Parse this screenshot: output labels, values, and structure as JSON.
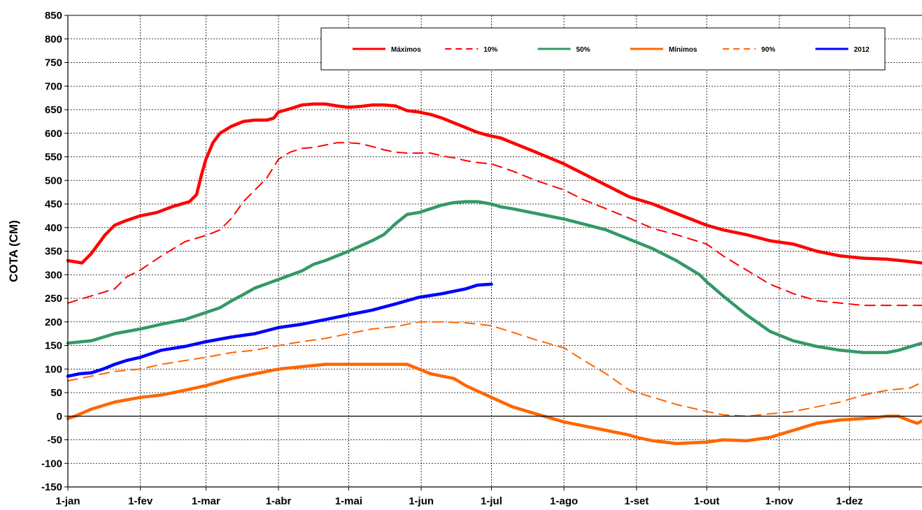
{
  "chart_data": {
    "type": "line",
    "title": "",
    "xlabel": "",
    "ylabel": "COTA (CM)",
    "x_unit": "day_of_year",
    "xlim": [
      0,
      365
    ],
    "ylim": [
      -150,
      850
    ],
    "ytick_step": 50,
    "grid": true,
    "x_ticks": [
      {
        "day": 0,
        "label": "1-jan"
      },
      {
        "day": 31,
        "label": "1-fev"
      },
      {
        "day": 59,
        "label": "1-mar"
      },
      {
        "day": 90,
        "label": "1-abr"
      },
      {
        "day": 120,
        "label": "1-mai"
      },
      {
        "day": 151,
        "label": "1-jun"
      },
      {
        "day": 181,
        "label": "1-jul"
      },
      {
        "day": 212,
        "label": "1-ago"
      },
      {
        "day": 243,
        "label": "1-set"
      },
      {
        "day": 273,
        "label": "1-out"
      },
      {
        "day": 304,
        "label": "1-nov"
      },
      {
        "day": 334,
        "label": "1-dez"
      }
    ],
    "legend_position": "top-right",
    "series": [
      {
        "name": "Máximos",
        "color": "#ff0000",
        "dash": "solid",
        "x": [
          0,
          6,
          10,
          16,
          20,
          25,
          31,
          38,
          45,
          52,
          55,
          57,
          59,
          62,
          65,
          70,
          75,
          80,
          85,
          88,
          90,
          95,
          100,
          105,
          110,
          115,
          120,
          125,
          130,
          135,
          140,
          145,
          150,
          155,
          160,
          165,
          170,
          175,
          180,
          185,
          190,
          200,
          212,
          220,
          230,
          240,
          250,
          260,
          273,
          280,
          290,
          300,
          310,
          320,
          330,
          340,
          350,
          360,
          365
        ],
        "y": [
          330,
          325,
          345,
          385,
          405,
          415,
          425,
          432,
          445,
          455,
          470,
          510,
          545,
          580,
          600,
          615,
          625,
          628,
          628,
          632,
          645,
          652,
          660,
          662,
          662,
          658,
          655,
          657,
          660,
          660,
          658,
          648,
          645,
          640,
          632,
          622,
          612,
          602,
          595,
          590,
          580,
          560,
          535,
          515,
          490,
          465,
          450,
          430,
          405,
          395,
          385,
          372,
          365,
          350,
          340,
          335,
          333,
          328,
          325
        ]
      },
      {
        "name": "10%",
        "color": "#ff0000",
        "dash": "dashed",
        "x": [
          0,
          10,
          20,
          25,
          31,
          40,
          50,
          60,
          65,
          70,
          75,
          80,
          85,
          90,
          95,
          100,
          105,
          110,
          115,
          120,
          125,
          130,
          135,
          140,
          145,
          150,
          155,
          160,
          165,
          170,
          175,
          181,
          190,
          200,
          212,
          220,
          230,
          240,
          250,
          260,
          273,
          280,
          290,
          300,
          310,
          320,
          330,
          340,
          350,
          365
        ],
        "y": [
          240,
          255,
          270,
          295,
          310,
          340,
          370,
          385,
          395,
          420,
          455,
          480,
          505,
          545,
          560,
          568,
          570,
          575,
          580,
          580,
          578,
          572,
          565,
          560,
          558,
          558,
          558,
          552,
          548,
          542,
          538,
          535,
          520,
          500,
          480,
          460,
          440,
          420,
          398,
          385,
          365,
          340,
          310,
          280,
          260,
          245,
          240,
          235,
          235,
          235
        ]
      },
      {
        "name": "50%",
        "color": "#339966",
        "dash": "solid",
        "x": [
          0,
          10,
          20,
          31,
          40,
          50,
          59,
          65,
          70,
          75,
          80,
          90,
          100,
          105,
          110,
          120,
          130,
          135,
          140,
          145,
          150,
          155,
          160,
          165,
          170,
          175,
          181,
          185,
          190,
          200,
          212,
          220,
          230,
          240,
          250,
          260,
          270,
          273,
          280,
          290,
          300,
          310,
          320,
          330,
          340,
          350,
          355,
          365
        ],
        "y": [
          155,
          160,
          175,
          185,
          195,
          205,
          220,
          230,
          245,
          258,
          272,
          290,
          308,
          322,
          330,
          350,
          372,
          385,
          408,
          428,
          432,
          440,
          448,
          453,
          455,
          455,
          450,
          444,
          440,
          430,
          418,
          408,
          395,
          375,
          355,
          330,
          300,
          285,
          255,
          215,
          180,
          160,
          148,
          140,
          135,
          135,
          140,
          155
        ]
      },
      {
        "name": "Mínimos",
        "color": "#ff6600",
        "dash": "solid",
        "x": [
          0,
          3,
          10,
          20,
          31,
          40,
          50,
          59,
          70,
          80,
          90,
          100,
          110,
          120,
          130,
          140,
          145,
          150,
          155,
          160,
          165,
          170,
          181,
          190,
          200,
          212,
          220,
          230,
          240,
          243,
          250,
          260,
          273,
          280,
          290,
          300,
          310,
          320,
          330,
          340,
          345,
          350,
          355,
          360,
          363,
          365
        ],
        "y": [
          -5,
          0,
          15,
          30,
          40,
          45,
          55,
          65,
          80,
          90,
          100,
          105,
          110,
          110,
          110,
          110,
          110,
          100,
          90,
          85,
          80,
          65,
          40,
          20,
          5,
          -12,
          -20,
          -30,
          -40,
          -45,
          -52,
          -58,
          -55,
          -50,
          -52,
          -45,
          -30,
          -15,
          -8,
          -5,
          -3,
          0,
          0,
          -10,
          -15,
          -10
        ]
      },
      {
        "name": "90%",
        "color": "#ff6600",
        "dash": "dashed",
        "x": [
          0,
          10,
          20,
          31,
          40,
          50,
          59,
          70,
          80,
          90,
          100,
          110,
          120,
          130,
          140,
          150,
          160,
          170,
          181,
          190,
          200,
          212,
          220,
          230,
          240,
          250,
          260,
          273,
          280,
          290,
          300,
          310,
          320,
          330,
          340,
          350,
          360,
          365
        ],
        "y": [
          75,
          85,
          95,
          100,
          110,
          118,
          125,
          135,
          140,
          150,
          158,
          165,
          175,
          185,
          190,
          200,
          200,
          198,
          192,
          178,
          162,
          145,
          120,
          90,
          55,
          40,
          25,
          10,
          3,
          0,
          5,
          10,
          20,
          30,
          45,
          55,
          60,
          72
        ]
      },
      {
        "name": "2012",
        "color": "#0000ff",
        "dash": "solid",
        "x": [
          0,
          5,
          10,
          15,
          20,
          25,
          31,
          40,
          50,
          59,
          70,
          80,
          90,
          100,
          110,
          120,
          130,
          140,
          150,
          160,
          170,
          175,
          181
        ],
        "y": [
          85,
          90,
          92,
          100,
          110,
          118,
          125,
          140,
          148,
          158,
          168,
          175,
          188,
          195,
          205,
          215,
          225,
          238,
          252,
          260,
          270,
          278,
          280
        ]
      }
    ]
  }
}
